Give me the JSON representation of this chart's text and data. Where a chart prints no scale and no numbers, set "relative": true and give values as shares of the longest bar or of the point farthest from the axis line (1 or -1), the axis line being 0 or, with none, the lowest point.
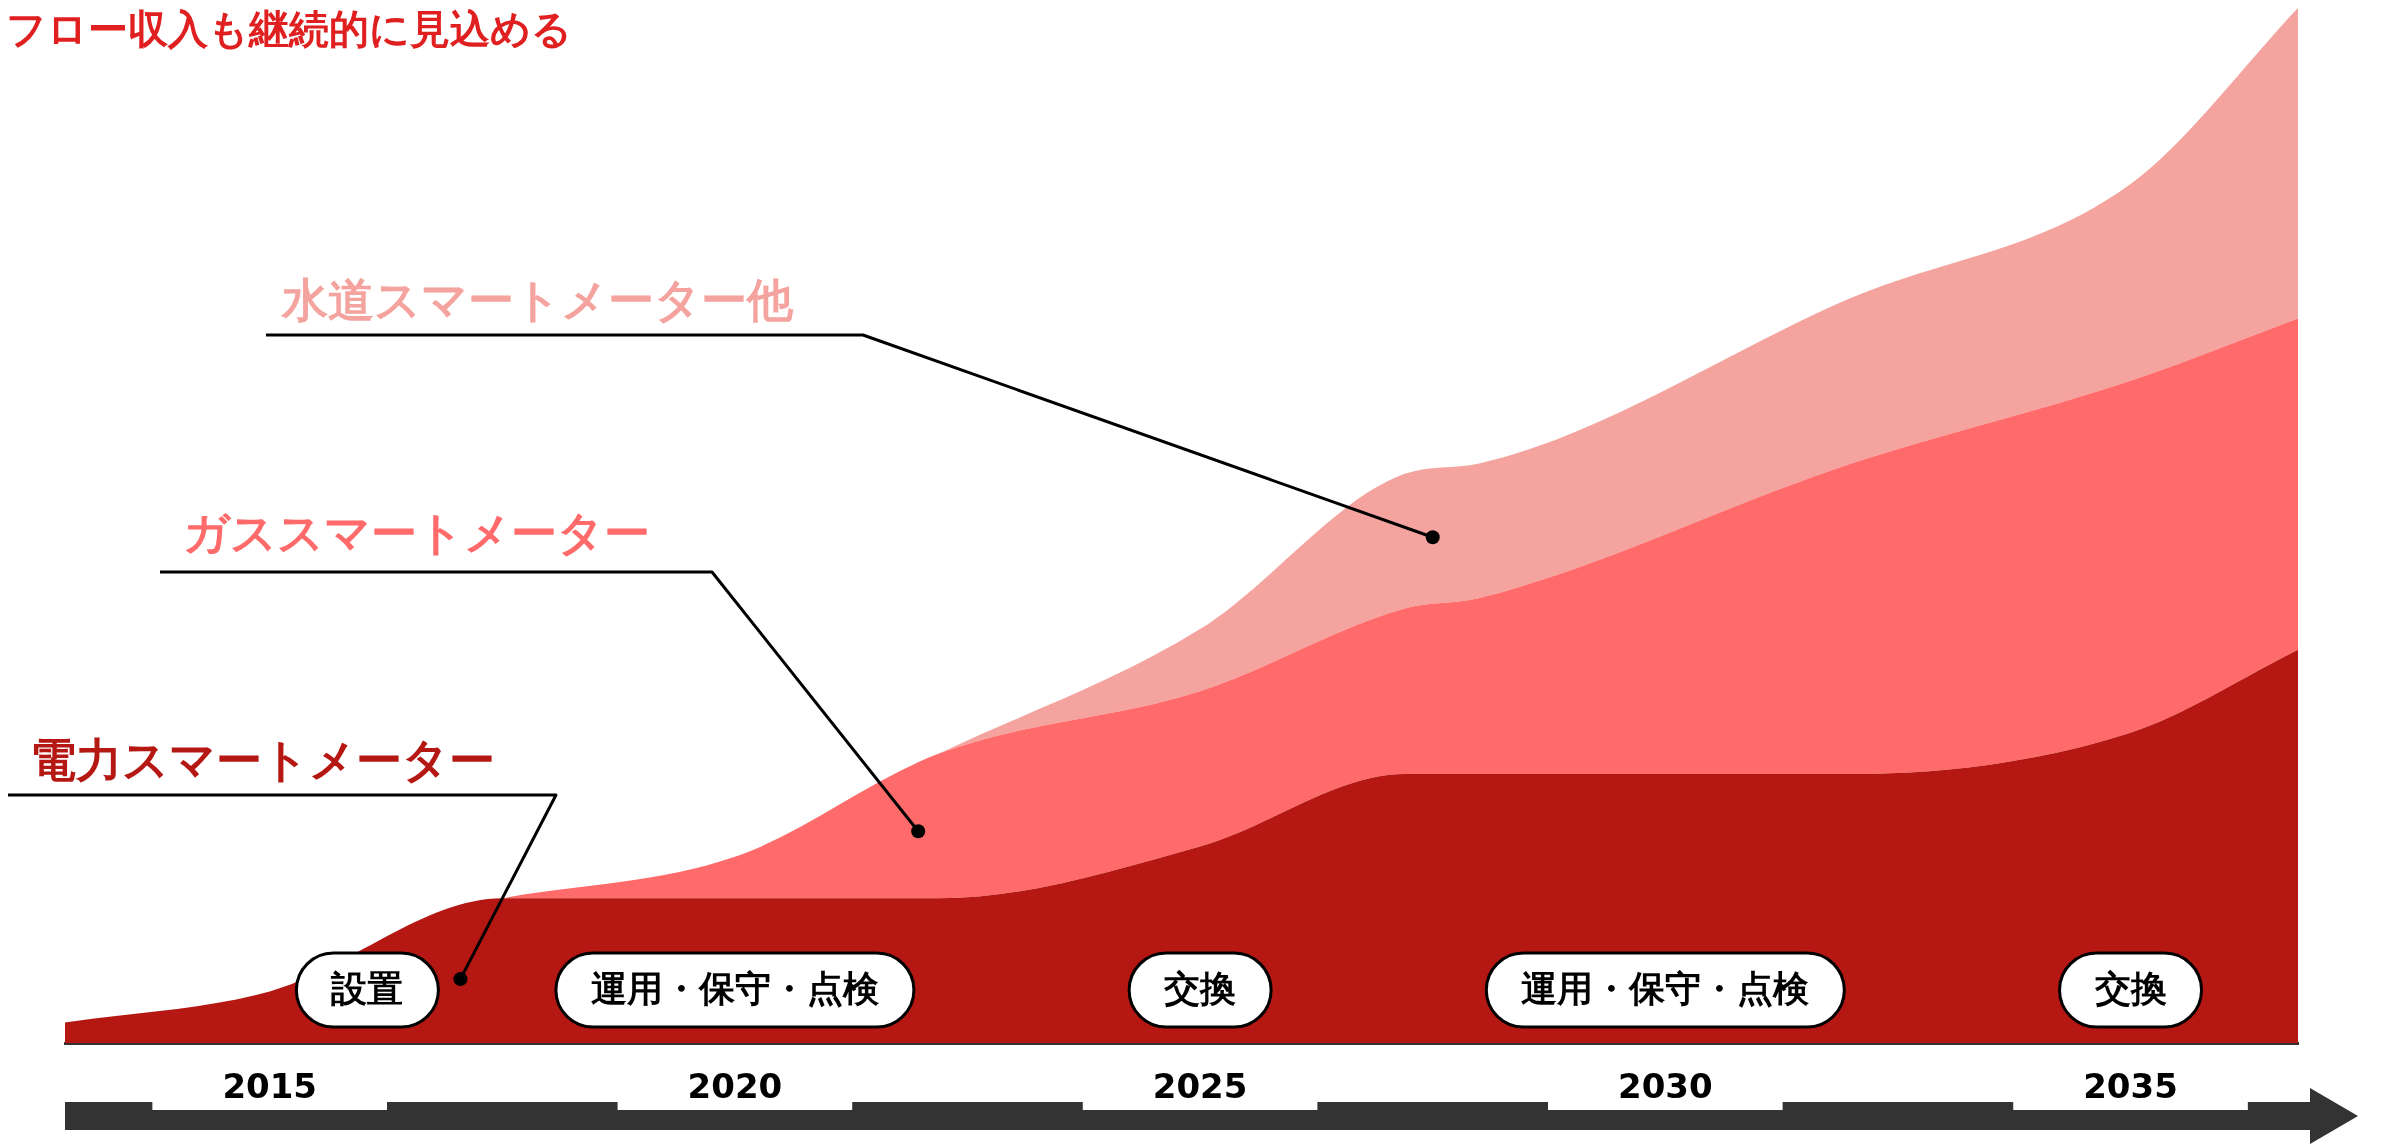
{
  "chart_data": {
    "type": "area",
    "title": "フロー収入も継続的に見込める",
    "relative": true,
    "stacked": true,
    "grid": false,
    "legend": false,
    "x": [
      2012.8,
      2015,
      2017.5,
      2020,
      2022.2,
      2025,
      2027.2,
      2028,
      2032,
      2035,
      2036.8
    ],
    "xlim": [
      2012.8,
      2036.8
    ],
    "xticks": [
      2015,
      2020,
      2025,
      2030,
      2035
    ],
    "series": [
      {
        "name": "電力スマートメーター",
        "color": "#b51712",
        "values": [
          0.02,
          0.05,
          0.14,
          0.14,
          0.14,
          0.19,
          0.26,
          0.26,
          0.26,
          0.3,
          0.38
        ]
      },
      {
        "name": "ガススマートメーター",
        "color": "#ff6b6b",
        "values": [
          null,
          null,
          0,
          0.04,
          0.14,
          0.15,
          0.16,
          0.17,
          0.3,
          0.34,
          0.32
        ]
      },
      {
        "name": "水道スマートメーター他",
        "color": "#f4a39e",
        "values": [
          null,
          null,
          null,
          null,
          0,
          0.06,
          0.13,
          0.13,
          0.16,
          0.19,
          0.3
        ]
      }
    ],
    "annotations": [
      "設置",
      "運用・保守・点検",
      "交換",
      "運用・保守・点検",
      "交換"
    ]
  }
}
